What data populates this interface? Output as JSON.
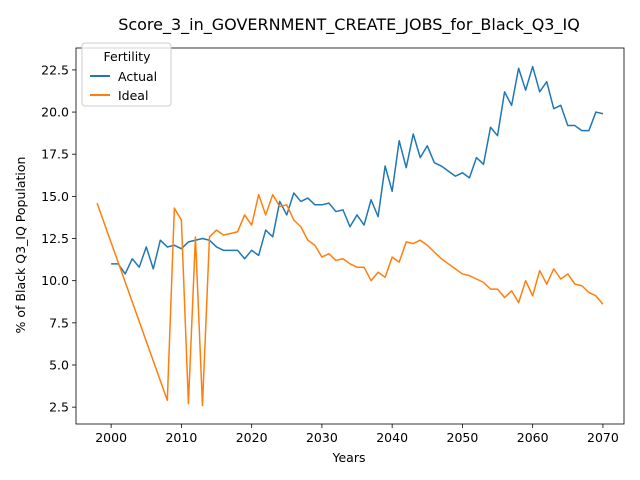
{
  "chart_data": {
    "type": "line",
    "title": "Score_3_in_GOVERNMENT_CREATE_JOBS_for_Black_Q3_IQ",
    "xlabel": "Years",
    "ylabel": "% of Black Q3_IQ Population",
    "xlim": [
      1995,
      2073
    ],
    "ylim": [
      1.5,
      23.8
    ],
    "xticks": [
      2000,
      2010,
      2020,
      2030,
      2040,
      2050,
      2060,
      2070
    ],
    "yticks": [
      2.5,
      5.0,
      7.5,
      10.0,
      12.5,
      15.0,
      17.5,
      20.0,
      22.5
    ],
    "ytick_labels": [
      "2.5",
      "5.0",
      "7.5",
      "10.0",
      "12.5",
      "15.0",
      "17.5",
      "20.0",
      "22.5"
    ],
    "grid": false,
    "legend": {
      "title": "Fertility",
      "position": "top-left"
    },
    "series": [
      {
        "name": "Actual",
        "color": "#1f77b4",
        "x": [
          2000,
          2001,
          2002,
          2003,
          2004,
          2005,
          2006,
          2007,
          2008,
          2009,
          2010,
          2011,
          2012,
          2013,
          2014,
          2015,
          2016,
          2017,
          2018,
          2019,
          2020,
          2021,
          2022,
          2023,
          2024,
          2025,
          2026,
          2027,
          2028,
          2029,
          2030,
          2031,
          2032,
          2033,
          2034,
          2035,
          2036,
          2037,
          2038,
          2039,
          2040,
          2041,
          2042,
          2043,
          2044,
          2045,
          2046,
          2047,
          2048,
          2049,
          2050,
          2051,
          2052,
          2053,
          2054,
          2055,
          2056,
          2057,
          2058,
          2059,
          2060,
          2061,
          2062,
          2063,
          2064,
          2065,
          2066,
          2067,
          2068,
          2069,
          2070
        ],
        "values": [
          11.0,
          11.0,
          10.4,
          11.3,
          10.8,
          12.0,
          10.7,
          12.4,
          12.0,
          12.1,
          11.9,
          12.3,
          12.4,
          12.5,
          12.4,
          12.0,
          11.8,
          11.8,
          11.8,
          11.3,
          11.8,
          11.5,
          13.0,
          12.6,
          14.7,
          13.9,
          15.2,
          14.7,
          14.9,
          14.5,
          14.5,
          14.6,
          14.1,
          14.2,
          13.2,
          13.9,
          13.3,
          14.8,
          13.8,
          16.8,
          15.3,
          18.3,
          16.7,
          18.7,
          17.3,
          18.0,
          17.0,
          16.8,
          16.5,
          16.2,
          16.4,
          16.1,
          17.3,
          16.9,
          19.1,
          18.6,
          21.2,
          20.4,
          22.6,
          21.3,
          22.7,
          21.2,
          21.8,
          20.2,
          20.4,
          19.2,
          19.2,
          18.9,
          18.9,
          20.0,
          19.9
        ]
      },
      {
        "name": "Ideal",
        "color": "#ff7f0e",
        "x": [
          1998,
          2008,
          2009,
          2010,
          2011,
          2012,
          2013,
          2014,
          2015,
          2016,
          2017,
          2018,
          2019,
          2020,
          2021,
          2022,
          2023,
          2024,
          2025,
          2026,
          2027,
          2028,
          2029,
          2030,
          2031,
          2032,
          2033,
          2034,
          2035,
          2036,
          2037,
          2038,
          2039,
          2040,
          2041,
          2042,
          2043,
          2044,
          2045,
          2046,
          2047,
          2048,
          2049,
          2050,
          2051,
          2052,
          2053,
          2054,
          2055,
          2056,
          2057,
          2058,
          2059,
          2060,
          2061,
          2062,
          2063,
          2064,
          2065,
          2066,
          2067,
          2068,
          2069,
          2070
        ],
        "values": [
          14.6,
          2.9,
          14.3,
          13.6,
          2.7,
          12.6,
          2.6,
          12.6,
          13.0,
          12.7,
          12.8,
          12.9,
          13.9,
          13.3,
          15.1,
          13.9,
          15.1,
          14.4,
          14.5,
          13.6,
          13.2,
          12.4,
          12.1,
          11.4,
          11.6,
          11.2,
          11.3,
          11.0,
          10.8,
          10.8,
          10.0,
          10.5,
          10.2,
          11.4,
          11.1,
          12.3,
          12.2,
          12.4,
          12.1,
          11.7,
          11.3,
          11.0,
          10.7,
          10.4,
          10.3,
          10.1,
          9.9,
          9.5,
          9.5,
          9.0,
          9.4,
          8.7,
          10.0,
          9.1,
          10.6,
          9.8,
          10.7,
          10.1,
          10.4,
          9.8,
          9.7,
          9.3,
          9.1,
          8.6
        ]
      }
    ]
  }
}
